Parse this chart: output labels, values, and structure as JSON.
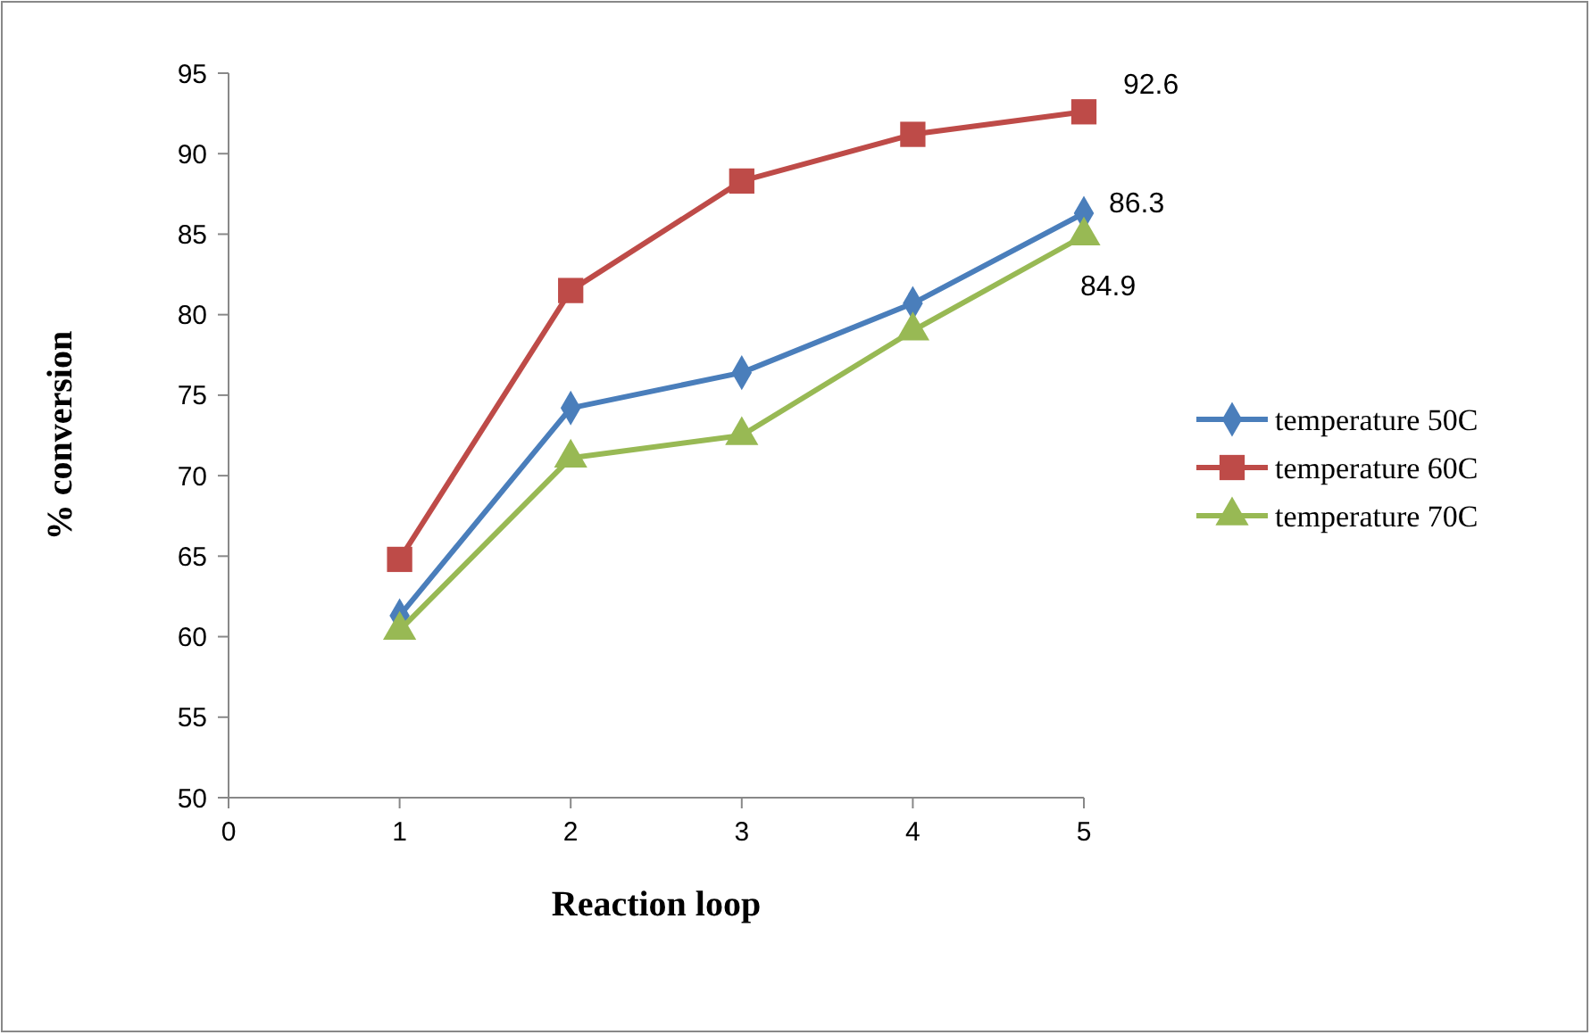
{
  "chart_data": {
    "type": "line",
    "xlabel": "Reaction loop",
    "ylabel": "% conversion",
    "x": [
      1,
      2,
      3,
      4,
      5
    ],
    "xlim": [
      0,
      5
    ],
    "xticks": [
      0,
      1,
      2,
      3,
      4,
      5
    ],
    "ylim": [
      50,
      95
    ],
    "yticks": [
      50,
      55,
      60,
      65,
      70,
      75,
      80,
      85,
      90,
      95
    ],
    "grid": false,
    "legend": "right",
    "line_style": "solid",
    "series": [
      {
        "name": "temperature 50C",
        "color": "#4a7ebb",
        "marker": "diamond",
        "values": [
          61.3,
          74.2,
          76.4,
          80.7,
          86.3
        ],
        "value_labels": [
          null,
          null,
          null,
          null,
          "86.3"
        ]
      },
      {
        "name": "temperature 60C",
        "color": "#be4b48",
        "marker": "square",
        "values": [
          64.8,
          81.5,
          88.3,
          91.2,
          92.6
        ],
        "value_labels": [
          null,
          null,
          null,
          null,
          "92.6"
        ]
      },
      {
        "name": "temperature 70C",
        "color": "#98b954",
        "marker": "triangle",
        "values": [
          60.4,
          71.1,
          72.5,
          79.0,
          84.9
        ],
        "value_labels": [
          null,
          null,
          null,
          null,
          "84.9"
        ]
      }
    ]
  }
}
